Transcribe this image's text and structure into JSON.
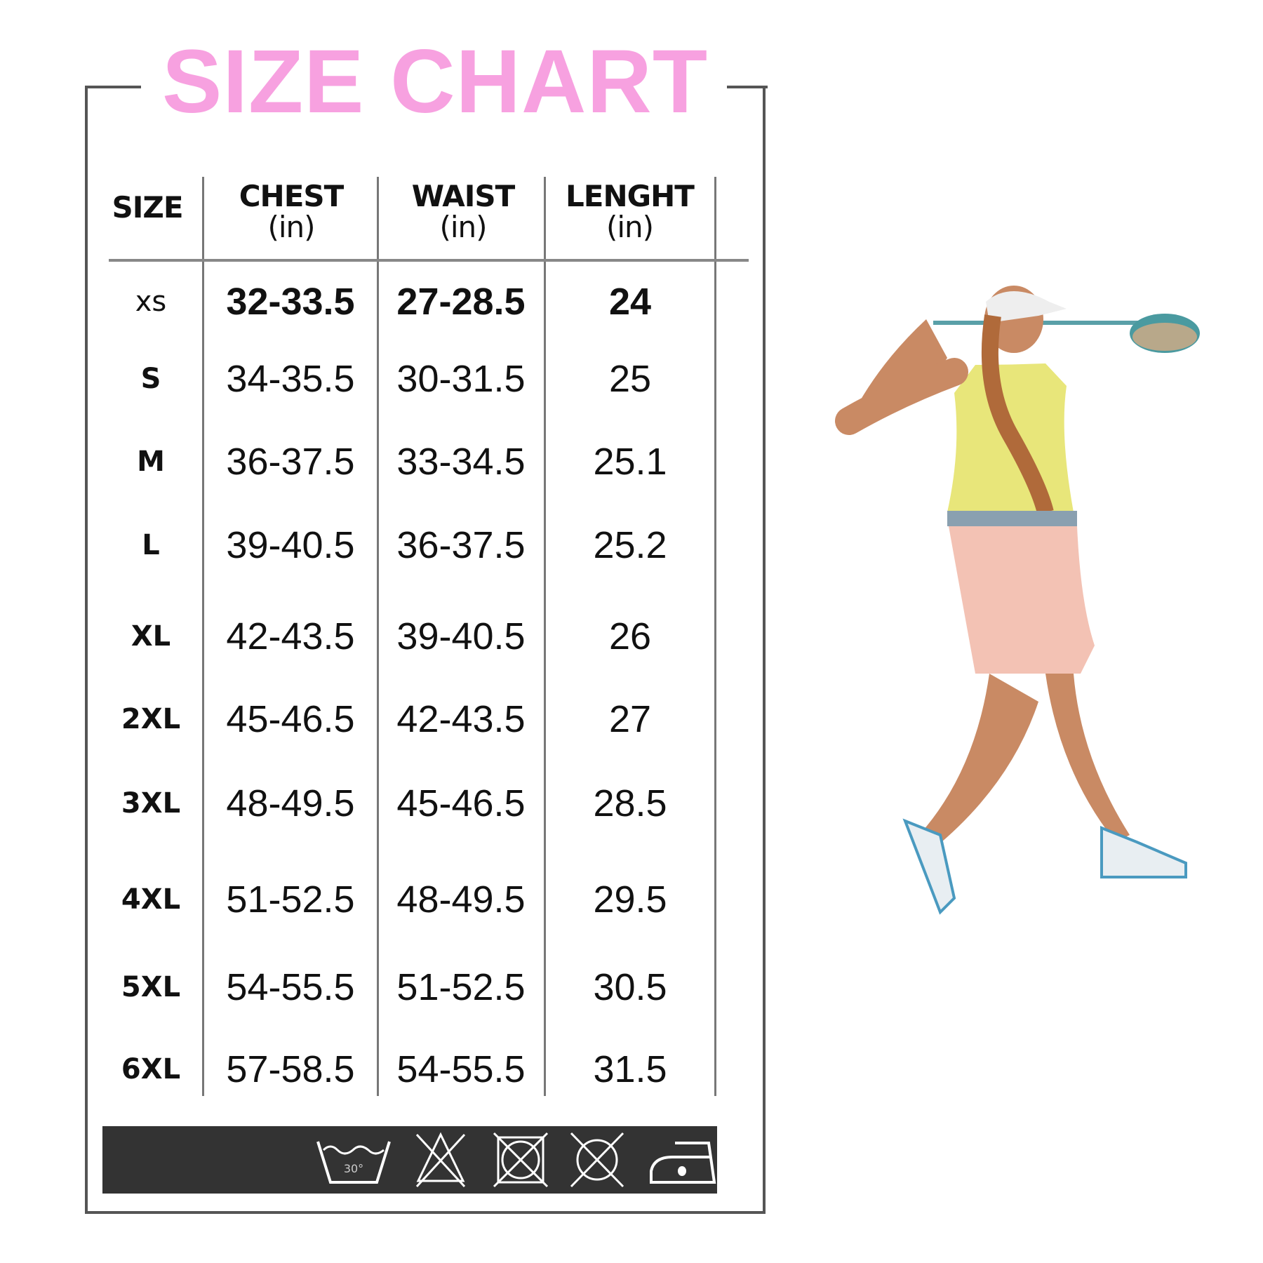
{
  "title": "SIZE CHART",
  "headers": [
    {
      "label": "SIZE",
      "unit": ""
    },
    {
      "label": "CHEST",
      "unit": "(in)"
    },
    {
      "label": "WAIST",
      "unit": "(in)"
    },
    {
      "label": "LENGHT",
      "unit": "(in)"
    }
  ],
  "rows": [
    {
      "size": "XS",
      "chest": "32-33.5",
      "waist": "27-28.5",
      "length": "24"
    },
    {
      "size": "S",
      "chest": "34-35.5",
      "waist": "30-31.5",
      "length": "25"
    },
    {
      "size": "M",
      "chest": "36-37.5",
      "waist": "33-34.5",
      "length": "25.1"
    },
    {
      "size": "L",
      "chest": "39-40.5",
      "waist": "36-37.5",
      "length": "25.2"
    },
    {
      "size": "XL",
      "chest": "42-43.5",
      "waist": "39-40.5",
      "length": "26"
    },
    {
      "size": "2XL",
      "chest": "45-46.5",
      "waist": "42-43.5",
      "length": "27"
    },
    {
      "size": "3XL",
      "chest": "48-49.5",
      "waist": "45-46.5",
      "length": "28.5"
    },
    {
      "size": "4XL",
      "chest": "51-52.5",
      "waist": "48-49.5",
      "length": "29.5"
    },
    {
      "size": "5XL",
      "chest": "54-55.5",
      "waist": "51-52.5",
      "length": "30.5"
    },
    {
      "size": "6XL",
      "chest": "57-58.5",
      "waist": "54-55.5",
      "length": "31.5"
    }
  ],
  "care": {
    "wash_temp": "30°",
    "icons": [
      "wash-30-icon",
      "no-bleach-icon",
      "no-tumble-dry-icon",
      "no-dry-clean-icon",
      "iron-low-icon"
    ]
  },
  "colors": {
    "title": "#f7a1e0",
    "care_bar": "#333333"
  }
}
